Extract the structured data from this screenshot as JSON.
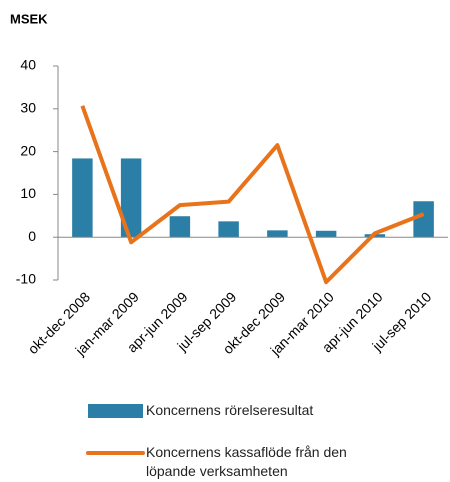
{
  "chart_data": {
    "type": "bar",
    "title": "MSEK",
    "categories": [
      "okt-dec 2008",
      "jan-mar 2009",
      "apr-jun 2009",
      "jul-sep 2009",
      "okt-dec 2009",
      "jan-mar 2010",
      "apr-jun 2010",
      "jul-sep 2010"
    ],
    "series": [
      {
        "name": "Koncernens rörelseresultat",
        "type": "bar",
        "color": "#2b7ea6",
        "values": [
          18.4,
          18.4,
          4.9,
          3.7,
          1.6,
          1.5,
          0.7,
          8.4
        ]
      },
      {
        "name": "Koncernens kassaflöde från den löpande verksamheten",
        "type": "line",
        "color": "#e8731a",
        "values": [
          30.7,
          -1.2,
          7.5,
          8.3,
          21.5,
          -10.5,
          0.9,
          5.4
        ]
      }
    ],
    "ylim": [
      -10,
      40
    ],
    "yticks": [
      -10,
      0,
      10,
      20,
      30,
      40
    ],
    "grid": false
  }
}
